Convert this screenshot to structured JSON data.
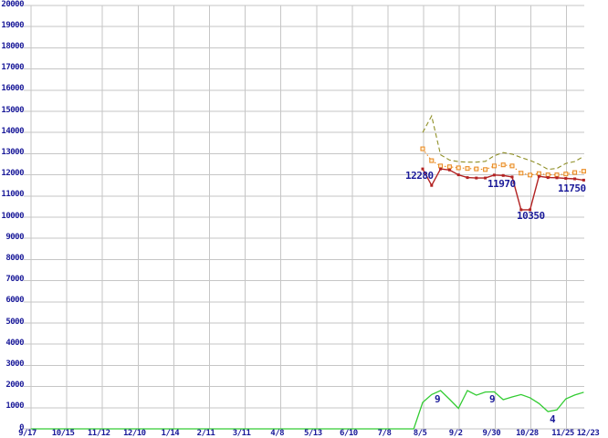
{
  "chart_data": {
    "type": "line",
    "title": "",
    "xlabel": "",
    "ylabel": "",
    "background_color": "#ffffff",
    "grid_color": "#c6c6c6",
    "label_color": "#1a1a99",
    "grid": true,
    "legend": false,
    "y_axis": {
      "min": 0,
      "max": 20000,
      "step": 1000,
      "tick_labels": [
        "20000",
        "19000",
        "18000",
        "17000",
        "16000",
        "15000",
        "14000",
        "13000",
        "12000",
        "11000",
        "10000",
        "9000",
        "8000",
        "7000",
        "6000",
        "5000",
        "4000",
        "3000",
        "2000",
        "1000",
        "0"
      ]
    },
    "x_axis": {
      "tick_labels": [
        "9/17",
        "10/15",
        "11/12",
        "12/10",
        "1/14",
        "2/11",
        "3/11",
        "4/8",
        "5/13",
        "6/10",
        "7/8",
        "8/5",
        "9/2",
        "9/30",
        "10/28",
        "11/25",
        "12/23"
      ],
      "note": "weekly data points; series start near the 8/5 gridline"
    },
    "series": [
      {
        "name": "upper-olive-dashed",
        "color": "#8f8f26",
        "line_style": "dashed",
        "marker": "none",
        "start_week": 0,
        "values": [
          14000,
          14780,
          12950,
          12700,
          12620,
          12600,
          12600,
          12640,
          12900,
          13050,
          12980,
          12820,
          12680,
          12500,
          12260,
          12300,
          12540,
          12630,
          12870
        ]
      },
      {
        "name": "middle-orange-dotted",
        "color": "#e8861c",
        "line_style": "dotted",
        "marker": "hollow-square",
        "start_week": 0,
        "values": [
          13230,
          12670,
          12420,
          12380,
          12330,
          12300,
          12280,
          12250,
          12420,
          12470,
          12420,
          12080,
          11990,
          12060,
          12000,
          12000,
          12040,
          12110,
          12170
        ]
      },
      {
        "name": "primary-red-solid",
        "color": "#b22222",
        "line_style": "solid",
        "marker": "filled-square",
        "start_week": 0,
        "values": [
          12280,
          11500,
          12280,
          12230,
          12000,
          11870,
          11850,
          11850,
          11990,
          11970,
          11900,
          10350,
          10350,
          11930,
          11870,
          11860,
          11830,
          11810,
          11750
        ]
      },
      {
        "name": "bottom-green-solid",
        "color": "#33cc33",
        "line_style": "solid",
        "marker": "none",
        "points": [
          [
            -43.8,
            0
          ],
          [
            -1,
            0
          ],
          [
            0,
            1250
          ],
          [
            1,
            1620
          ],
          [
            2,
            1810
          ],
          [
            3,
            1400
          ],
          [
            4,
            970
          ],
          [
            5,
            1810
          ],
          [
            6,
            1590
          ],
          [
            7,
            1740
          ],
          [
            8,
            1750
          ],
          [
            9,
            1380
          ],
          [
            10,
            1510
          ],
          [
            11,
            1620
          ],
          [
            12,
            1470
          ],
          [
            13,
            1200
          ],
          [
            14,
            820
          ],
          [
            15,
            900
          ],
          [
            16,
            1420
          ],
          [
            17,
            1600
          ],
          [
            18,
            1730
          ]
        ]
      }
    ],
    "point_labels": [
      {
        "text": "12280",
        "x": 444,
        "y": 187
      },
      {
        "text": "11970",
        "x": 534,
        "y": 196
      },
      {
        "text": "10350",
        "x": 566,
        "y": 231
      },
      {
        "text": "11750",
        "x": 611,
        "y": 201
      },
      {
        "text": "9",
        "x": 476,
        "y": 432
      },
      {
        "text": "9",
        "x": 536,
        "y": 432
      },
      {
        "text": "4",
        "x": 602,
        "y": 454
      }
    ]
  }
}
